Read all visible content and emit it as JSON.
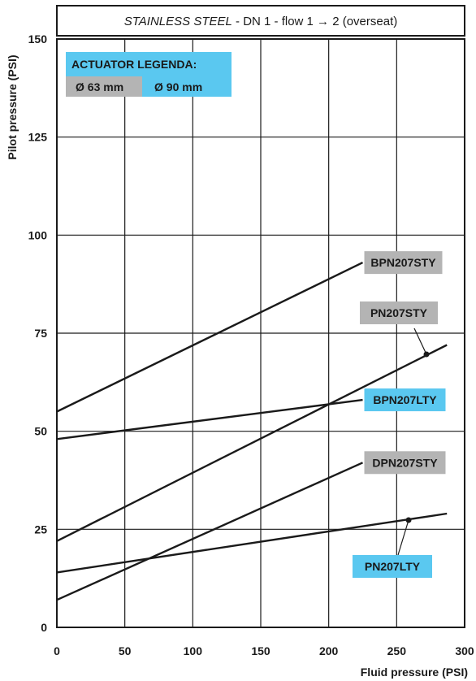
{
  "chart_data": {
    "type": "line",
    "title_italic": "STAINLESS STEEL",
    "title_rest": " - DN 1 - flow 1 → 2 (overseat)",
    "xlabel": "Fluid pressure (PSI)",
    "ylabel": "Pilot pressure (PSI)",
    "xlim": [
      0,
      300
    ],
    "ylim": [
      0,
      150
    ],
    "x_ticks": [
      0,
      50,
      100,
      150,
      200,
      250,
      300
    ],
    "y_ticks": [
      0,
      25,
      50,
      75,
      100,
      125,
      150
    ],
    "grid": true,
    "legend": {
      "title": "ACTUATOR LEGENDA:",
      "items": [
        {
          "label": "Ø 63 mm",
          "color": "#b4b4b4"
        },
        {
          "label": "Ø 90 mm",
          "color": "#5ac8f0"
        }
      ],
      "placement": "top-left"
    },
    "series": [
      {
        "name": "BPN207STY",
        "actuator": "Ø 63 mm",
        "x": [
          0,
          225
        ],
        "y": [
          55,
          93
        ]
      },
      {
        "name": "PN207STY",
        "actuator": "Ø 63 mm",
        "x": [
          0,
          287
        ],
        "y": [
          22,
          72
        ]
      },
      {
        "name": "BPN207LTY",
        "actuator": "Ø 90 mm",
        "x": [
          0,
          225
        ],
        "y": [
          48,
          58
        ]
      },
      {
        "name": "DPN207STY",
        "actuator": "Ø 63 mm",
        "x": [
          0,
          225
        ],
        "y": [
          7,
          42
        ]
      },
      {
        "name": "PN207LTY",
        "actuator": "Ø 90 mm",
        "x": [
          0,
          287
        ],
        "y": [
          14,
          29
        ]
      }
    ]
  }
}
